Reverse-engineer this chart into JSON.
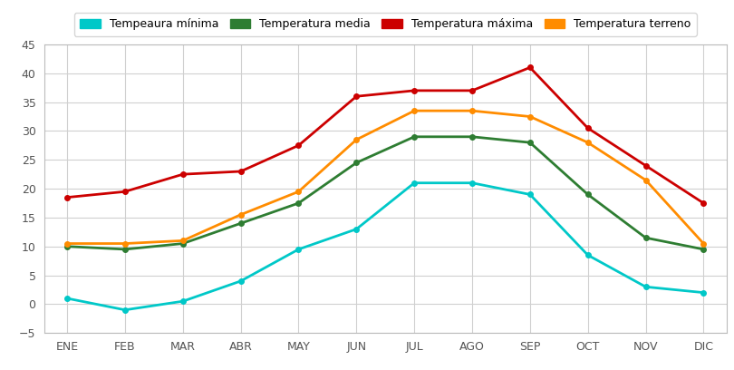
{
  "months": [
    "ENE",
    "FEB",
    "MAR",
    "ABR",
    "MAY",
    "JUN",
    "JUL",
    "AGO",
    "SEP",
    "OCT",
    "NOV",
    "DIC"
  ],
  "temp_minima": [
    1,
    -1,
    0.5,
    4,
    9.5,
    13,
    21,
    21,
    19,
    8.5,
    3,
    2
  ],
  "temp_media": [
    10,
    9.5,
    10.5,
    14,
    17.5,
    24.5,
    29,
    29,
    28,
    19,
    11.5,
    9.5
  ],
  "temp_maxima": [
    18.5,
    19.5,
    22.5,
    23,
    27.5,
    36,
    37,
    37,
    41,
    30.5,
    24,
    17.5
  ],
  "temp_terreno": [
    10.5,
    10.5,
    11,
    15.5,
    19.5,
    28.5,
    33.5,
    33.5,
    32.5,
    28,
    21.5,
    10.5
  ],
  "legend_labels": [
    "Tempeaura mínima",
    "Temperatura media",
    "Temperatura máxima",
    "Temperatura terreno"
  ],
  "colors": {
    "minima": "#00C8C8",
    "media": "#2E7D32",
    "maxima": "#CC0000",
    "terreno": "#FF8C00"
  },
  "ylim": [
    -5,
    45
  ],
  "yticks": [
    -5,
    0,
    5,
    10,
    15,
    20,
    25,
    30,
    35,
    40,
    45
  ],
  "background_color": "#ffffff",
  "grid_color": "#d0d0d0",
  "linewidth": 2.0,
  "figsize": [
    8.1,
    4.08
  ],
  "dpi": 100
}
